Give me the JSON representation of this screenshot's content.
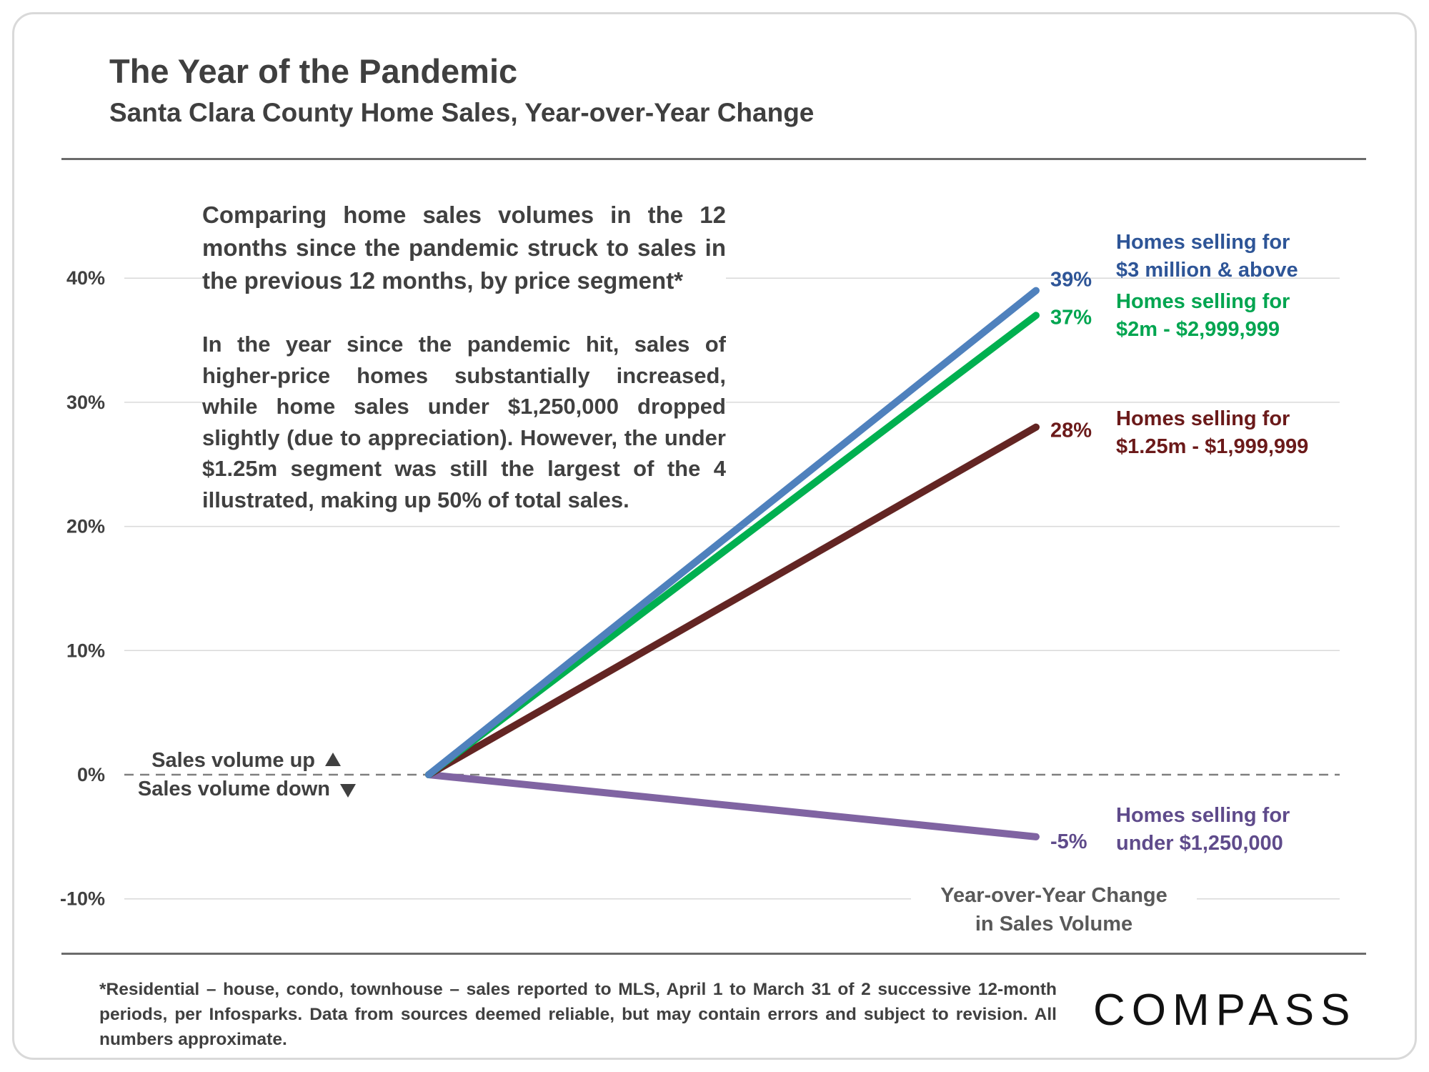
{
  "header": {
    "title": "The Year of the Pandemic",
    "subtitle": "Santa Clara County Home Sales, Year-over-Year Change"
  },
  "notes": {
    "comparison": "Comparing home sales volumes in the 12 months since the pandemic struck to sales in the previous 12 months, by price segment*",
    "summary": "In the year since the pandemic hit, sales of higher-price homes substantially increased, while home sales under $1,250,000 dropped slightly (due to appreciation). However, the under $1.25m segment was still the largest of the 4 illustrated, making up 50% of total sales."
  },
  "chart_data": {
    "type": "line",
    "x": [
      "",
      ""
    ],
    "ylim": [
      -10,
      40
    ],
    "yticks": [
      -10,
      0,
      10,
      20,
      30,
      40
    ],
    "ytick_labels": [
      "-10%",
      "0%",
      "10%",
      "20%",
      "30%",
      "40%"
    ],
    "grid": true,
    "baseline": {
      "value": 0,
      "style": "dashed"
    },
    "direction_labels": {
      "up": "Sales volume up",
      "down": "Sales volume down"
    },
    "axis_caption": [
      "Year-over-Year Change",
      "in Sales Volume"
    ],
    "series": [
      {
        "label_lines": [
          "Homes selling for",
          "$3 million & above"
        ],
        "values": [
          0,
          39
        ],
        "end_label": "39%",
        "color": "#4f81bd"
      },
      {
        "label_lines": [
          "Homes selling for",
          "$2m - $2,999,999"
        ],
        "values": [
          0,
          37
        ],
        "end_label": "37%",
        "color": "#00b050"
      },
      {
        "label_lines": [
          "Homes selling for",
          "$1.25m - $1,999,999"
        ],
        "values": [
          0,
          28
        ],
        "end_label": "28%",
        "color": "#632523"
      },
      {
        "label_lines": [
          "Homes selling for",
          "under $1,250,000"
        ],
        "values": [
          0,
          -5
        ],
        "end_label": "-5%",
        "color": "#8064a2"
      }
    ],
    "label_colors": [
      "#2e5597",
      "#00a550",
      "#6b1a1a",
      "#5f4b8b"
    ]
  },
  "footnote": "*Residential – house, condo, townhouse – sales reported to MLS, April 1 to March 31 of 2 successive 12-month periods, per Infosparks. Data from sources deemed reliable, but may contain errors and subject to revision. All numbers  approximate.",
  "brand": {
    "logo_text": "COMPASS"
  }
}
